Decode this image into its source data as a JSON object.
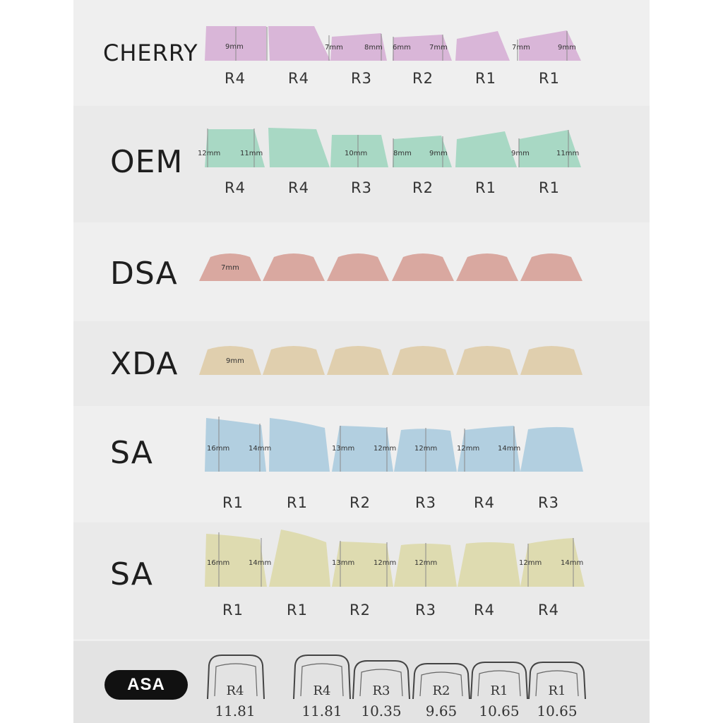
{
  "profiles": [
    {
      "id": "cherry",
      "name": "CHERRY",
      "color": "#d9b6d8",
      "rows": [
        "R4",
        "R4",
        "R3",
        "R2",
        "R1",
        "R1"
      ],
      "dims": [
        "9mm",
        "7mm",
        "8mm",
        "6mm",
        "7mm",
        "7mm",
        "9mm"
      ]
    },
    {
      "id": "oem",
      "name": "OEM",
      "color": "#a8d8c4",
      "rows": [
        "R4",
        "R4",
        "R3",
        "R2",
        "R1",
        "R1"
      ],
      "dims": [
        "12mm",
        "11mm",
        "10mm",
        "8mm",
        "9mm",
        "9mm",
        "11mm"
      ]
    },
    {
      "id": "dsa",
      "name": "DSA",
      "color": "#d9a8a0",
      "rows": [],
      "dims": [
        "7mm"
      ]
    },
    {
      "id": "xda",
      "name": "XDA",
      "color": "#e0cfae",
      "rows": [],
      "dims": [
        "9mm"
      ]
    },
    {
      "id": "sa-blue",
      "name": "SA",
      "color": "#b2cfe0",
      "rows": [
        "R1",
        "R1",
        "R2",
        "R3",
        "R4",
        "R3"
      ],
      "dims": [
        "16mm",
        "14mm",
        "13mm",
        "12mm",
        "12mm",
        "12mm",
        "14mm"
      ]
    },
    {
      "id": "sa-yellow",
      "name": "SA",
      "color": "#dedbb0",
      "rows": [
        "R1",
        "R1",
        "R2",
        "R3",
        "R4",
        "R4"
      ],
      "dims": [
        "16mm",
        "14mm",
        "13mm",
        "12mm",
        "12mm",
        "12mm",
        "14mm"
      ]
    }
  ],
  "asa": {
    "name": "ASA",
    "keys": [
      {
        "row": "R4",
        "height": "11.81"
      },
      {
        "row": "R4",
        "height": "11.81"
      },
      {
        "row": "R3",
        "height": "10.35"
      },
      {
        "row": "R2",
        "height": "9.65"
      },
      {
        "row": "R1",
        "height": "10.65"
      },
      {
        "row": "R1",
        "height": "10.65"
      }
    ]
  }
}
